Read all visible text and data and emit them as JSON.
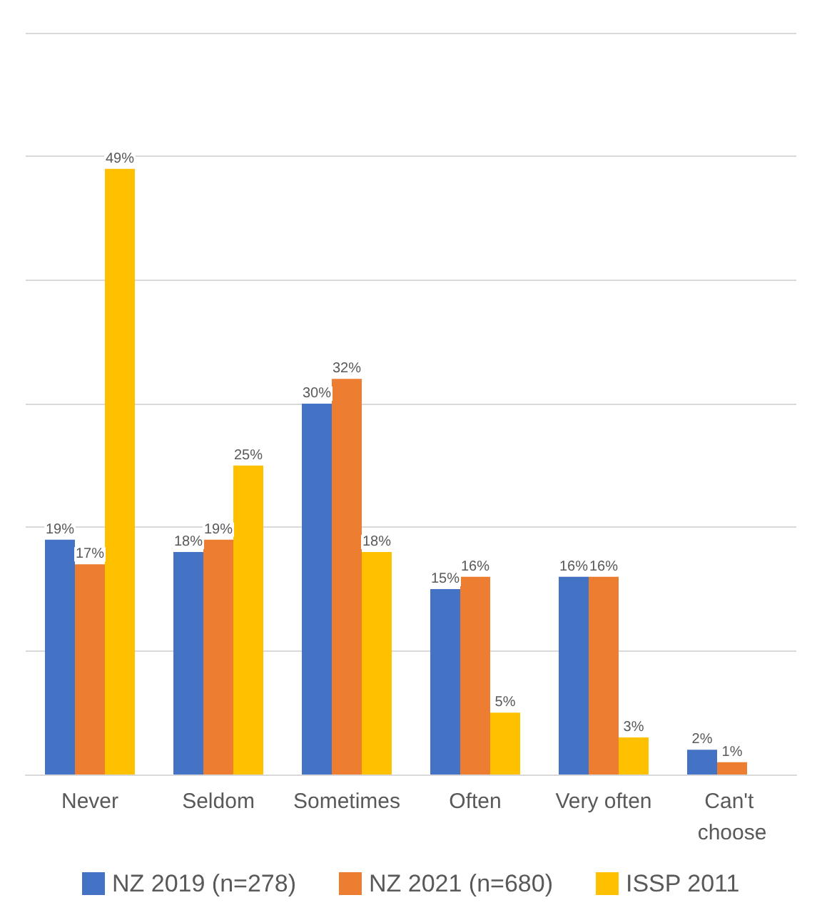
{
  "chart_data": {
    "type": "bar",
    "categories": [
      "Never",
      "Seldom",
      "Sometimes",
      "Often",
      "Very often",
      "Can't choose"
    ],
    "series": [
      {
        "name": "NZ 2019 (n=278)",
        "color": "#4472c4",
        "values": [
          19,
          18,
          30,
          15,
          16,
          2
        ],
        "value_labels": [
          "19%",
          "18%",
          "30%",
          "15%",
          "16%",
          "2%"
        ]
      },
      {
        "name": "NZ 2021 (n=680)",
        "color": "#ed7d31",
        "values": [
          17,
          19,
          32,
          16,
          16,
          1
        ],
        "value_labels": [
          "17%",
          "19%",
          "32%",
          "16%",
          "16%",
          "1%"
        ]
      },
      {
        "name": "ISSP 2011",
        "color": "#ffc000",
        "values": [
          49,
          25,
          18,
          5,
          3,
          null
        ],
        "value_labels": [
          "49%",
          "25%",
          "18%",
          "5%",
          "3%",
          null
        ]
      }
    ],
    "ylim": [
      0,
      60
    ],
    "yticks": [
      {
        "value": 0,
        "label": null
      },
      {
        "value": 10,
        "label": null
      },
      {
        "value": 20,
        "label": null
      },
      {
        "value": 30,
        "label": null
      },
      {
        "value": 40,
        "label": null
      },
      {
        "value": 50,
        "label": null
      },
      {
        "value": 60,
        "label": null
      }
    ],
    "tick_labels": "x",
    "grid": "y",
    "legend": "bottom"
  }
}
